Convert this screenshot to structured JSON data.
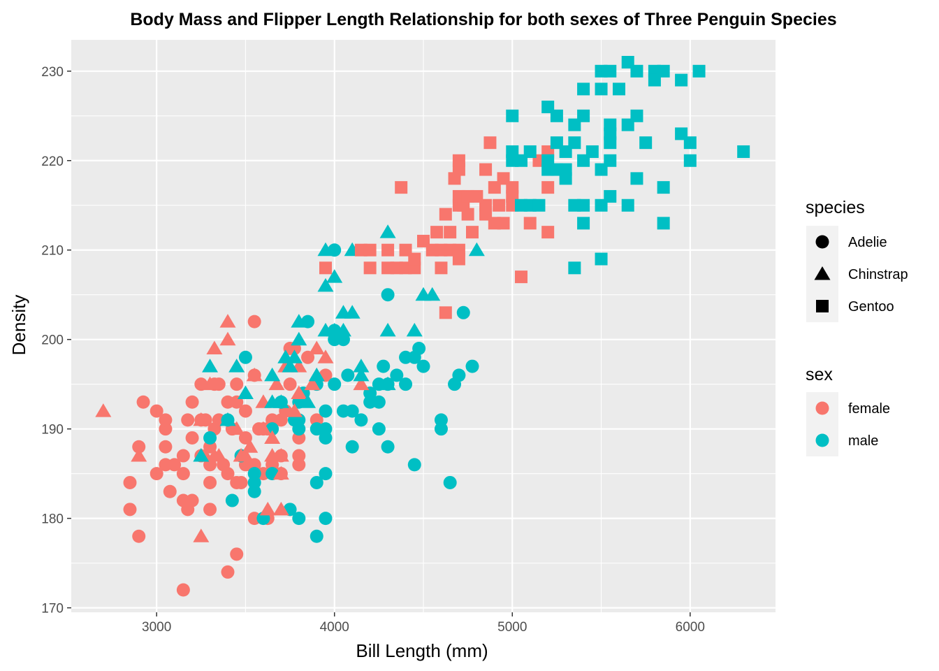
{
  "chart_data": {
    "type": "scatter",
    "title": "Body Mass and Flipper Length Relationship for both sexes of Three Penguin Species",
    "xlabel": "Bill Length (mm)",
    "ylabel": "Density",
    "xlim": [
      2520,
      6480
    ],
    "ylim": [
      169.5,
      233.5
    ],
    "x_ticks": [
      3000,
      4000,
      5000,
      6000
    ],
    "y_ticks": [
      170,
      180,
      190,
      200,
      210,
      220,
      230
    ],
    "grid": true,
    "colors": {
      "female": "#F8766D",
      "male": "#00BFC4",
      "panel": "#EBEBEB",
      "grid": "#FFFFFF"
    },
    "legend": {
      "placement": "right",
      "shape_title": "species",
      "shape_entries": [
        {
          "label": "Adelie",
          "shape": "circle"
        },
        {
          "label": "Chinstrap",
          "shape": "triangle"
        },
        {
          "label": "Gentoo",
          "shape": "square"
        }
      ],
      "color_title": "sex",
      "color_entries": [
        {
          "label": "female",
          "color": "#F8766D"
        },
        {
          "label": "male",
          "color": "#00BFC4"
        }
      ]
    },
    "series": [
      {
        "species": "Adelie",
        "sex": "female",
        "points": [
          [
            2850,
            184
          ],
          [
            2850,
            181
          ],
          [
            2900,
            188
          ],
          [
            2900,
            178
          ],
          [
            2925,
            193
          ],
          [
            3000,
            192
          ],
          [
            3000,
            185
          ],
          [
            3050,
            186
          ],
          [
            3050,
            188
          ],
          [
            3050,
            190
          ],
          [
            3050,
            191
          ],
          [
            3075,
            183
          ],
          [
            3100,
            186
          ],
          [
            3150,
            187
          ],
          [
            3150,
            185
          ],
          [
            3150,
            182
          ],
          [
            3150,
            172
          ],
          [
            3175,
            181
          ],
          [
            3175,
            191
          ],
          [
            3200,
            189
          ],
          [
            3200,
            182
          ],
          [
            3200,
            193
          ],
          [
            3250,
            195
          ],
          [
            3250,
            187
          ],
          [
            3250,
            191
          ],
          [
            3275,
            191
          ],
          [
            3300,
            186
          ],
          [
            3300,
            188
          ],
          [
            3300,
            184
          ],
          [
            3300,
            181
          ],
          [
            3325,
            195
          ],
          [
            3325,
            190
          ],
          [
            3350,
            195
          ],
          [
            3350,
            191
          ],
          [
            3375,
            186
          ],
          [
            3400,
            193
          ],
          [
            3400,
            185
          ],
          [
            3400,
            174
          ],
          [
            3425,
            190
          ],
          [
            3450,
            184
          ],
          [
            3450,
            193
          ],
          [
            3450,
            195
          ],
          [
            3450,
            176
          ],
          [
            3475,
            184
          ],
          [
            3500,
            189
          ],
          [
            3500,
            186
          ],
          [
            3500,
            192
          ],
          [
            3525,
            186
          ],
          [
            3550,
            196
          ],
          [
            3550,
            180
          ],
          [
            3550,
            202
          ],
          [
            3550,
            186
          ],
          [
            3575,
            190
          ],
          [
            3600,
            185
          ],
          [
            3600,
            190
          ],
          [
            3625,
            190
          ],
          [
            3625,
            180
          ],
          [
            3650,
            186
          ],
          [
            3650,
            191
          ],
          [
            3700,
            187
          ],
          [
            3700,
            191
          ],
          [
            3700,
            185
          ],
          [
            3725,
            192
          ],
          [
            3750,
            199
          ],
          [
            3750,
            195
          ],
          [
            3775,
            199
          ],
          [
            3800,
            187
          ],
          [
            3800,
            186
          ],
          [
            3800,
            189
          ],
          [
            3850,
            198
          ],
          [
            3900,
            191
          ],
          [
            3950,
            196
          ]
        ]
      },
      {
        "species": "Adelie",
        "sex": "male",
        "points": [
          [
            3300,
            189
          ],
          [
            3400,
            191
          ],
          [
            3425,
            182
          ],
          [
            3475,
            187
          ],
          [
            3500,
            198
          ],
          [
            3550,
            185
          ],
          [
            3550,
            184
          ],
          [
            3550,
            183
          ],
          [
            3600,
            180
          ],
          [
            3650,
            190
          ],
          [
            3650,
            185
          ],
          [
            3700,
            193
          ],
          [
            3750,
            181
          ],
          [
            3775,
            191
          ],
          [
            3800,
            180
          ],
          [
            3800,
            191
          ],
          [
            3800,
            193
          ],
          [
            3800,
            190
          ],
          [
            3825,
            194
          ],
          [
            3850,
            202
          ],
          [
            3900,
            195
          ],
          [
            3900,
            190
          ],
          [
            3900,
            178
          ],
          [
            3900,
            184
          ],
          [
            3950,
            189
          ],
          [
            3950,
            192
          ],
          [
            3950,
            185
          ],
          [
            3950,
            190
          ],
          [
            3950,
            180
          ],
          [
            4000,
            201
          ],
          [
            4000,
            195
          ],
          [
            4000,
            200
          ],
          [
            4000,
            210
          ],
          [
            4050,
            192
          ],
          [
            4050,
            200
          ],
          [
            4075,
            196
          ],
          [
            4100,
            188
          ],
          [
            4100,
            192
          ],
          [
            4150,
            191
          ],
          [
            4200,
            193
          ],
          [
            4200,
            194
          ],
          [
            4250,
            195
          ],
          [
            4250,
            193
          ],
          [
            4250,
            190
          ],
          [
            4275,
            197
          ],
          [
            4300,
            205
          ],
          [
            4300,
            188
          ],
          [
            4300,
            195
          ],
          [
            4350,
            196
          ],
          [
            4400,
            195
          ],
          [
            4400,
            198
          ],
          [
            4450,
            186
          ],
          [
            4450,
            198
          ],
          [
            4475,
            199
          ],
          [
            4500,
            197
          ],
          [
            4600,
            191
          ],
          [
            4600,
            190
          ],
          [
            4650,
            184
          ],
          [
            4675,
            195
          ],
          [
            4700,
            196
          ],
          [
            4725,
            203
          ],
          [
            4775,
            197
          ]
        ]
      },
      {
        "species": "Chinstrap",
        "sex": "female",
        "points": [
          [
            2700,
            192
          ],
          [
            2900,
            187
          ],
          [
            3250,
            178
          ],
          [
            3250,
            191
          ],
          [
            3275,
            187
          ],
          [
            3300,
            195
          ],
          [
            3325,
            187
          ],
          [
            3325,
            199
          ],
          [
            3350,
            187
          ],
          [
            3400,
            202
          ],
          [
            3400,
            200
          ],
          [
            3450,
            190
          ],
          [
            3475,
            187
          ],
          [
            3500,
            187
          ],
          [
            3525,
            188
          ],
          [
            3550,
            196
          ],
          [
            3600,
            193
          ],
          [
            3600,
            190
          ],
          [
            3625,
            181
          ],
          [
            3650,
            189
          ],
          [
            3650,
            187
          ],
          [
            3675,
            195
          ],
          [
            3700,
            181
          ],
          [
            3700,
            185
          ],
          [
            3700,
            187
          ],
          [
            3725,
            197
          ],
          [
            3775,
            192
          ],
          [
            3800,
            197
          ],
          [
            3800,
            194
          ],
          [
            3875,
            195
          ],
          [
            3900,
            199
          ],
          [
            3950,
            198
          ],
          [
            4150,
            195
          ]
        ]
      },
      {
        "species": "Chinstrap",
        "sex": "male",
        "points": [
          [
            3250,
            187
          ],
          [
            3300,
            197
          ],
          [
            3400,
            191
          ],
          [
            3450,
            197
          ],
          [
            3500,
            194
          ],
          [
            3650,
            193
          ],
          [
            3650,
            196
          ],
          [
            3700,
            193
          ],
          [
            3725,
            198
          ],
          [
            3750,
            197
          ],
          [
            3775,
            198
          ],
          [
            3800,
            200
          ],
          [
            3800,
            202
          ],
          [
            3850,
            193
          ],
          [
            3900,
            196
          ],
          [
            3950,
            201
          ],
          [
            3950,
            206
          ],
          [
            3950,
            210
          ],
          [
            4000,
            201
          ],
          [
            4000,
            207
          ],
          [
            4050,
            203
          ],
          [
            4050,
            201
          ],
          [
            4100,
            203
          ],
          [
            4100,
            210
          ],
          [
            4150,
            196
          ],
          [
            4150,
            197
          ],
          [
            4300,
            201
          ],
          [
            4300,
            212
          ],
          [
            4300,
            195
          ],
          [
            4450,
            201
          ],
          [
            4500,
            205
          ],
          [
            4550,
            205
          ],
          [
            4800,
            210
          ]
        ]
      },
      {
        "species": "Gentoo",
        "sex": "female",
        "points": [
          [
            3950,
            208
          ],
          [
            4150,
            210
          ],
          [
            4200,
            210
          ],
          [
            4200,
            208
          ],
          [
            4300,
            210
          ],
          [
            4300,
            208
          ],
          [
            4350,
            208
          ],
          [
            4375,
            217
          ],
          [
            4400,
            210
          ],
          [
            4400,
            208
          ],
          [
            4450,
            208
          ],
          [
            4450,
            209
          ],
          [
            4500,
            211
          ],
          [
            4550,
            210
          ],
          [
            4575,
            212
          ],
          [
            4600,
            210
          ],
          [
            4600,
            208
          ],
          [
            4625,
            203
          ],
          [
            4625,
            214
          ],
          [
            4650,
            210
          ],
          [
            4650,
            212
          ],
          [
            4675,
            218
          ],
          [
            4700,
            210
          ],
          [
            4700,
            209
          ],
          [
            4700,
            215
          ],
          [
            4700,
            216
          ],
          [
            4700,
            219
          ],
          [
            4700,
            220
          ],
          [
            4725,
            215
          ],
          [
            4750,
            216
          ],
          [
            4750,
            214
          ],
          [
            4775,
            212
          ],
          [
            4800,
            216
          ],
          [
            4850,
            215
          ],
          [
            4850,
            214
          ],
          [
            4850,
            219
          ],
          [
            4875,
            222
          ],
          [
            4900,
            213
          ],
          [
            4900,
            217
          ],
          [
            4925,
            215
          ],
          [
            4950,
            213
          ],
          [
            4950,
            218
          ],
          [
            5000,
            216
          ],
          [
            5000,
            217
          ],
          [
            5000,
            215
          ],
          [
            5050,
            207
          ],
          [
            5100,
            213
          ],
          [
            5150,
            220
          ],
          [
            5200,
            217
          ],
          [
            5200,
            221
          ],
          [
            5200,
            212
          ]
        ]
      },
      {
        "species": "Gentoo",
        "sex": "male",
        "points": [
          [
            5000,
            225
          ],
          [
            5000,
            221
          ],
          [
            5000,
            220
          ],
          [
            5050,
            220
          ],
          [
            5050,
            215
          ],
          [
            5100,
            215
          ],
          [
            5100,
            221
          ],
          [
            5150,
            215
          ],
          [
            5200,
            226
          ],
          [
            5200,
            219
          ],
          [
            5200,
            220
          ],
          [
            5250,
            219
          ],
          [
            5250,
            225
          ],
          [
            5250,
            222
          ],
          [
            5300,
            219
          ],
          [
            5300,
            221
          ],
          [
            5300,
            218
          ],
          [
            5350,
            215
          ],
          [
            5350,
            224
          ],
          [
            5350,
            222
          ],
          [
            5350,
            208
          ],
          [
            5400,
            228
          ],
          [
            5400,
            225
          ],
          [
            5400,
            220
          ],
          [
            5400,
            215
          ],
          [
            5400,
            213
          ],
          [
            5450,
            221
          ],
          [
            5500,
            230
          ],
          [
            5500,
            228
          ],
          [
            5500,
            219
          ],
          [
            5500,
            215
          ],
          [
            5500,
            209
          ],
          [
            5550,
            230
          ],
          [
            5550,
            224
          ],
          [
            5550,
            223
          ],
          [
            5550,
            222
          ],
          [
            5550,
            220
          ],
          [
            5550,
            216
          ],
          [
            5600,
            228
          ],
          [
            5650,
            231
          ],
          [
            5650,
            224
          ],
          [
            5650,
            215
          ],
          [
            5700,
            230
          ],
          [
            5700,
            225
          ],
          [
            5700,
            218
          ],
          [
            5750,
            222
          ],
          [
            5800,
            230
          ],
          [
            5800,
            229
          ],
          [
            5850,
            230
          ],
          [
            5850,
            217
          ],
          [
            5850,
            213
          ],
          [
            5950,
            229
          ],
          [
            5950,
            223
          ],
          [
            6000,
            222
          ],
          [
            6000,
            220
          ],
          [
            6050,
            230
          ],
          [
            6300,
            221
          ]
        ]
      }
    ]
  }
}
